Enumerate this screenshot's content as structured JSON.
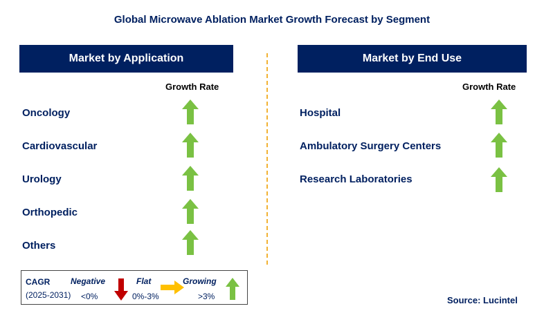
{
  "title": "Global Microwave Ablation Market Growth Forecast by Segment",
  "left_panel": {
    "header": "Market by Application",
    "growth_label": "Growth Rate",
    "items": [
      {
        "label": "Oncology",
        "trend": "growing"
      },
      {
        "label": "Cardiovascular",
        "trend": "growing"
      },
      {
        "label": "Urology",
        "trend": "growing"
      },
      {
        "label": "Orthopedic",
        "trend": "growing"
      },
      {
        "label": "Others",
        "trend": "growing"
      }
    ]
  },
  "right_panel": {
    "header": "Market by End Use",
    "growth_label": "Growth Rate",
    "items": [
      {
        "label": "Hospital",
        "trend": "growing"
      },
      {
        "label": "Ambulatory Surgery Centers",
        "trend": "growing"
      },
      {
        "label": "Research Laboratories",
        "trend": "growing"
      }
    ]
  },
  "legend": {
    "cagr": "CAGR",
    "period": "(2025-2031)",
    "negative": {
      "title": "Negative",
      "value": "<0%",
      "icon": "down-arrow-icon",
      "color": "#c00000"
    },
    "flat": {
      "title": "Flat",
      "value": "0%-3%",
      "icon": "right-arrow-icon",
      "color": "#ffc000"
    },
    "growing": {
      "title": "Growing",
      "value": ">3%",
      "icon": "up-arrow-icon",
      "color": "#7ac143"
    }
  },
  "source": "Source: Lucintel",
  "colors": {
    "navy": "#002060",
    "up_arrow": "#7ac143",
    "divider": "#f2b233"
  }
}
